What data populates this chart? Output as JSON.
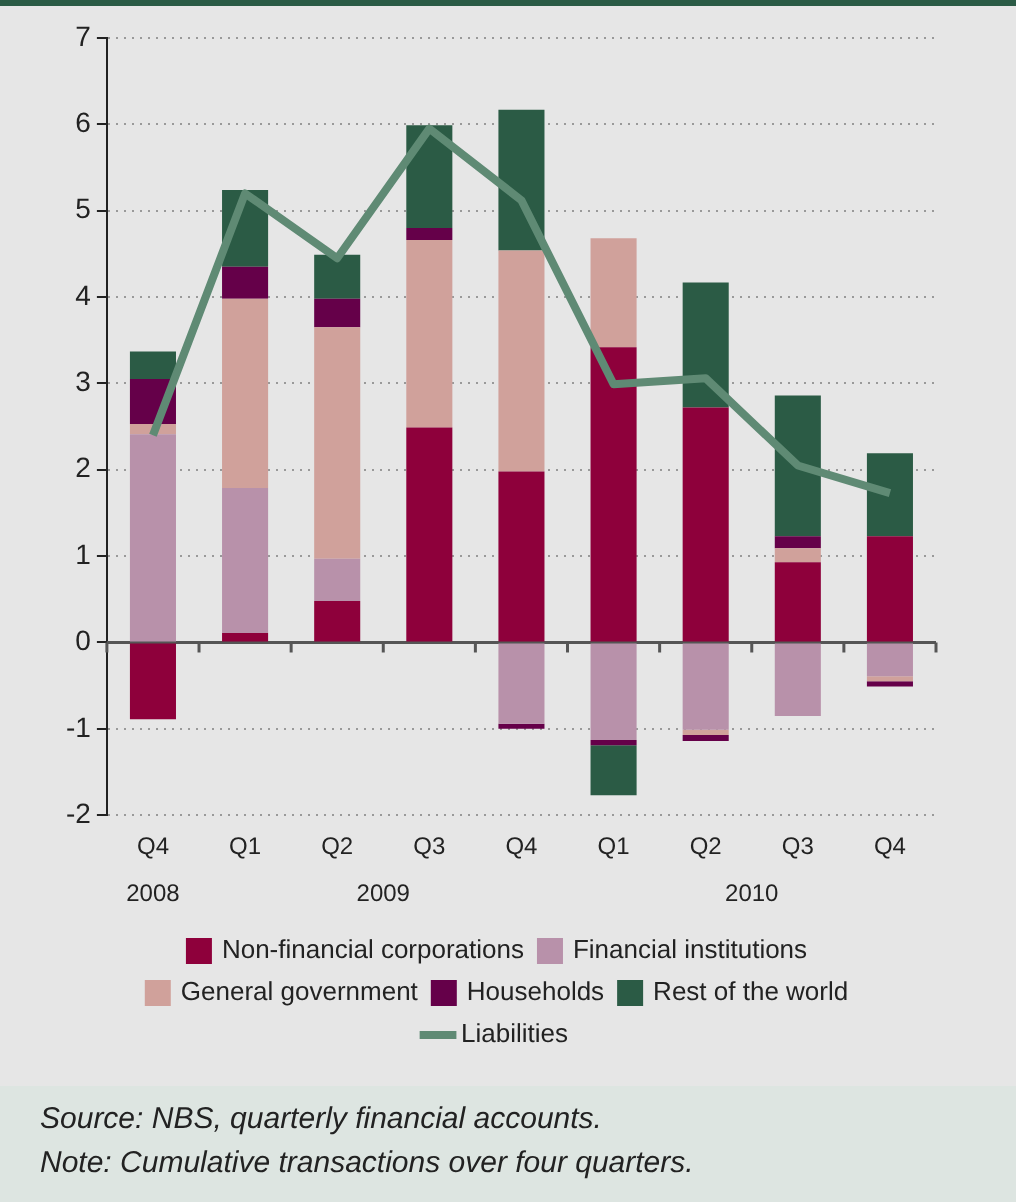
{
  "chart_data": {
    "type": "bar",
    "stacked": true,
    "categories": [
      "Q4",
      "Q1",
      "Q2",
      "Q3",
      "Q4",
      "Q1",
      "Q2",
      "Q3",
      "Q4"
    ],
    "series": [
      {
        "name": "Non-financial corporations",
        "color": "#8e003b",
        "values": [
          -0.89,
          0.11,
          0.48,
          2.49,
          1.98,
          3.42,
          2.72,
          0.93,
          1.23
        ]
      },
      {
        "name": "Financial institutions",
        "color": "#b891aa",
        "values": [
          2.41,
          1.68,
          0.49,
          null,
          -0.94,
          -1.13,
          -1.01,
          -0.85,
          -0.39
        ]
      },
      {
        "name": "General government",
        "color": "#d0a19b",
        "values": [
          0.12,
          2.19,
          2.68,
          2.17,
          2.56,
          1.26,
          -0.06,
          0.16,
          -0.06
        ]
      },
      {
        "name": "Households",
        "color": "#650049",
        "values": [
          0.52,
          0.37,
          0.33,
          0.14,
          -0.06,
          -0.06,
          -0.07,
          0.14,
          -0.06
        ]
      },
      {
        "name": "Rest of the world",
        "color": "#2b5b45",
        "values": [
          0.32,
          0.89,
          0.51,
          1.19,
          1.63,
          -0.58,
          1.45,
          1.63,
          0.96
        ]
      },
      {
        "name": "Liabilities",
        "type": "line",
        "color": "#5f8a74",
        "values": [
          2.4,
          5.2,
          4.45,
          5.95,
          5.12,
          2.99,
          3.06,
          2.05,
          1.73
        ]
      }
    ],
    "ylim": [
      -2,
      7
    ],
    "yticks": [
      -2,
      -1,
      0,
      1,
      2,
      3,
      4,
      5,
      6,
      7
    ],
    "grid": "y",
    "legend": "bottom",
    "annotations": [
      "2008",
      "2009",
      "2010",
      "Source: NBS, quarterly financial accounts.",
      "Note: Cumulative transactions over four quarters."
    ]
  }
}
